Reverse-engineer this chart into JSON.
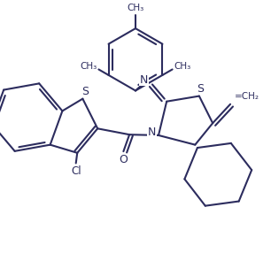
{
  "background_color": "#ffffff",
  "line_color": "#2c2c5e",
  "line_width": 1.5,
  "figsize": [
    3.06,
    3.12
  ],
  "dpi": 100,
  "xlim": [
    0,
    10
  ],
  "ylim": [
    0,
    10.2
  ]
}
